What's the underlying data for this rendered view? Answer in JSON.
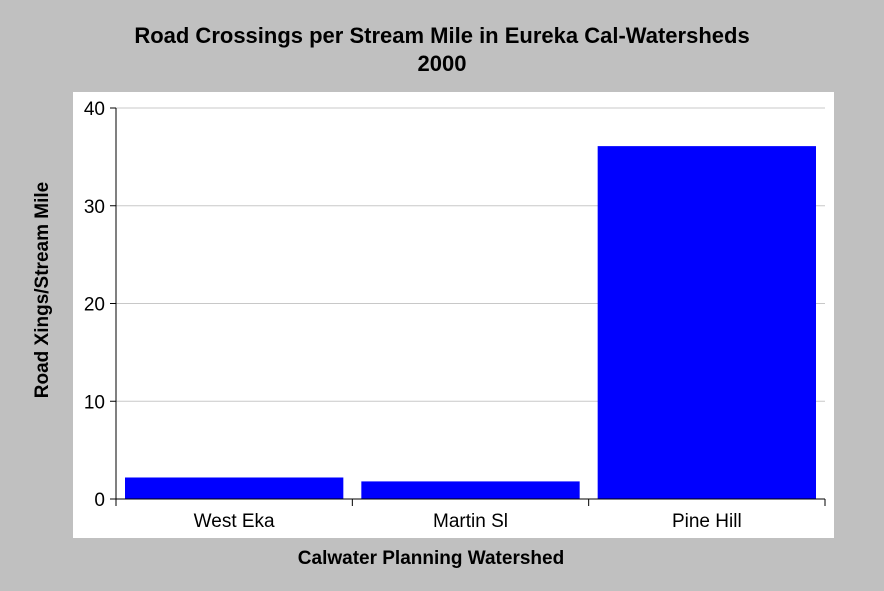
{
  "chart_data": {
    "type": "bar",
    "title": "Road Crossings per Stream Mile in Eureka Cal-Watersheds",
    "subtitle": "2000",
    "xlabel": "Calwater Planning Watershed",
    "ylabel": "Road Xings/Stream Mile",
    "categories": [
      "West Eka",
      "Martin Sl",
      "Pine Hill"
    ],
    "values": [
      2.2,
      1.8,
      36.1
    ],
    "ylim": [
      0,
      40
    ],
    "yticks": [
      0,
      10,
      20,
      30,
      40
    ],
    "grid": true,
    "legend": "none",
    "colors": {
      "bar": "#0000ff",
      "background": "#c0c0c0",
      "plot_background": "#ffffff",
      "grid": "#c8c8c8"
    }
  }
}
